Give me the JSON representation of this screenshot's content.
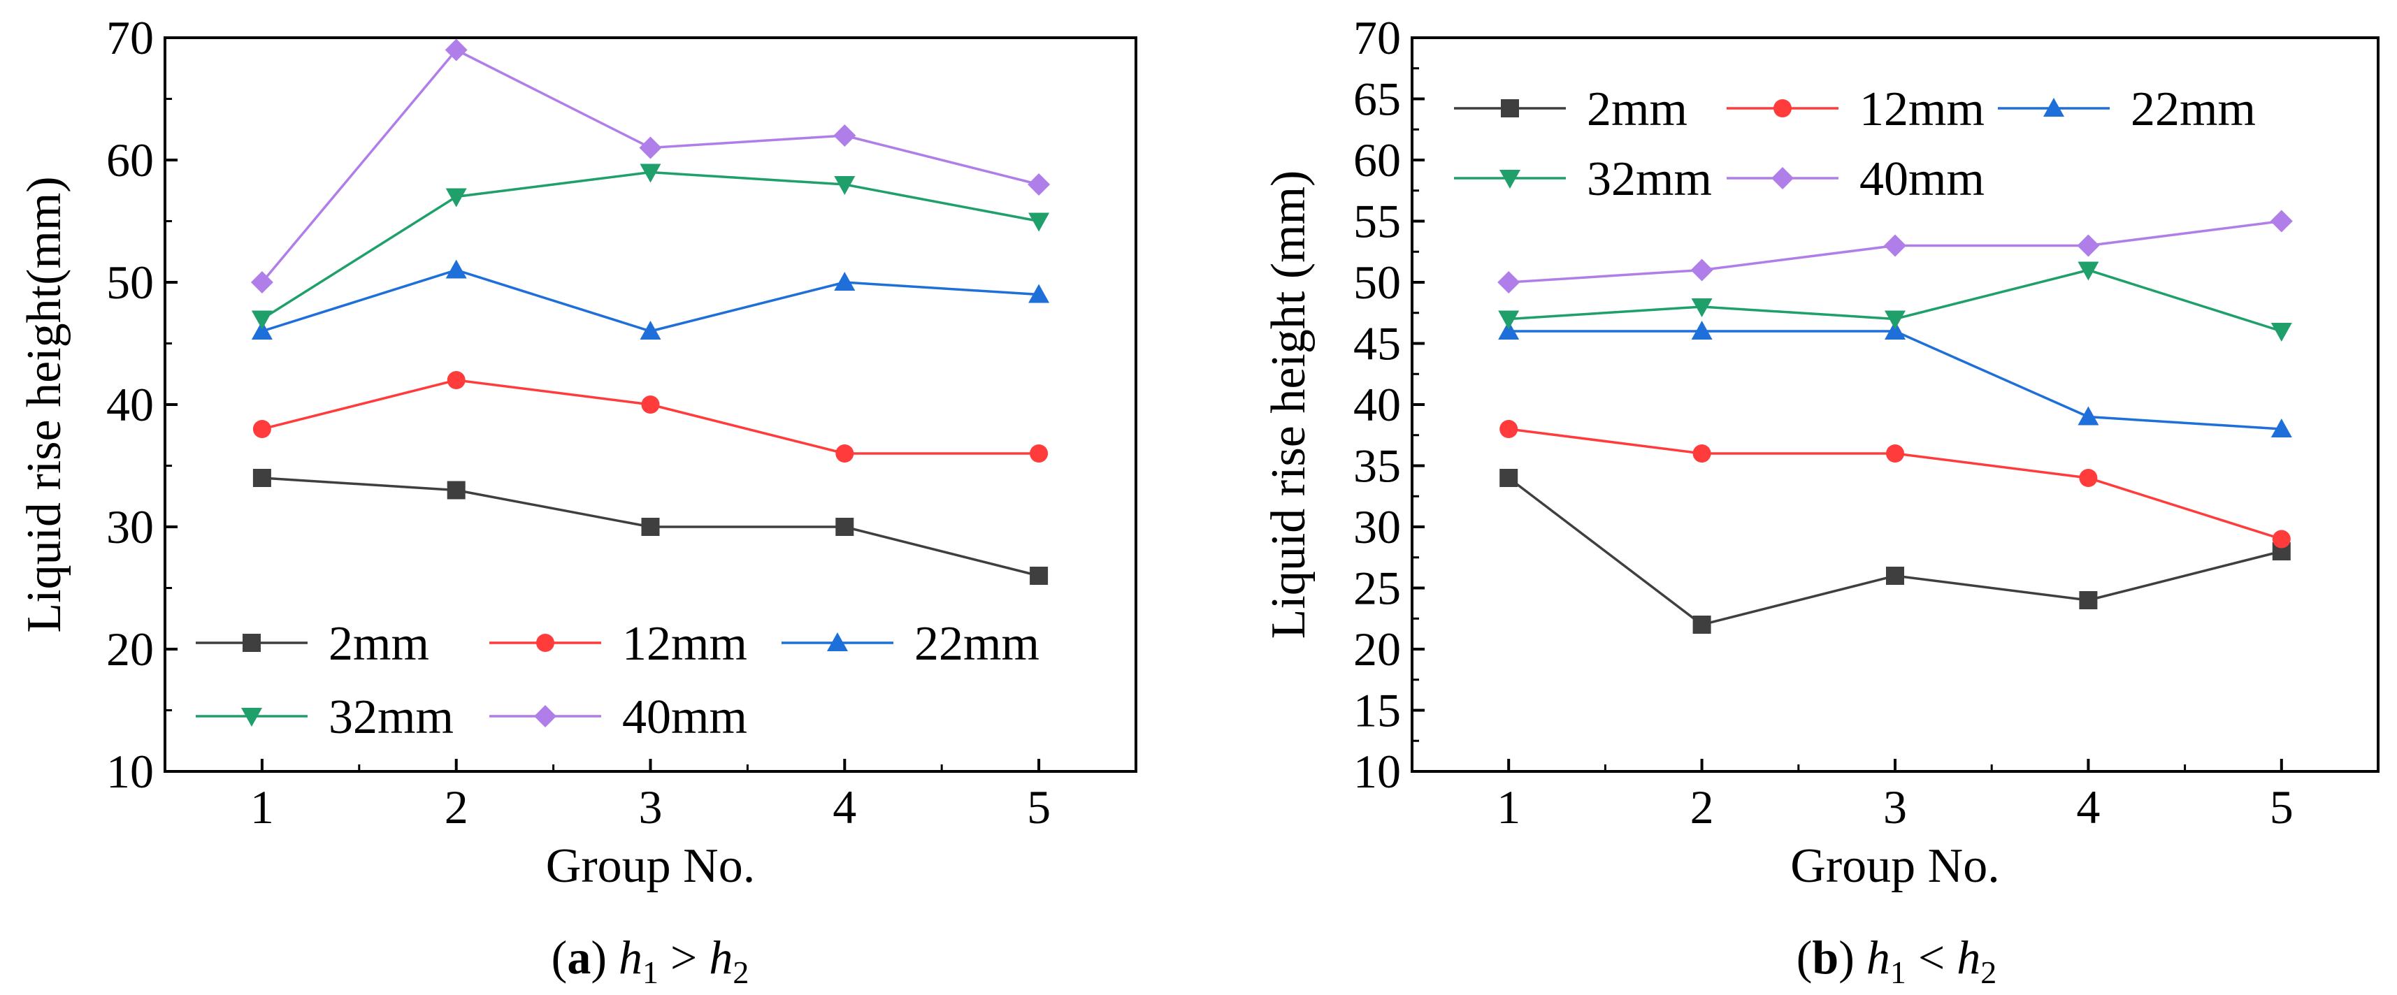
{
  "chart_data": [
    {
      "type": "line",
      "caption": {
        "letter": "a",
        "h1": "h",
        "sub1": "1",
        "op": ">",
        "h2": "h",
        "sub2": "2"
      },
      "xlabel": "Group No.",
      "ylabel": "Liquid rise height(mm)",
      "x": [
        1,
        2,
        3,
        4,
        5
      ],
      "xlim": [
        0.5,
        5.5
      ],
      "ylim": [
        10,
        70
      ],
      "yticks": [
        10,
        20,
        30,
        40,
        50,
        60,
        70
      ],
      "legend_position": "bottom-left",
      "series": [
        {
          "name": "2mm",
          "color": "#3f3f3f",
          "marker": "square",
          "values": [
            34,
            33,
            30,
            30,
            26
          ]
        },
        {
          "name": "12mm",
          "color": "#ff3b3b",
          "marker": "circle",
          "values": [
            38,
            42,
            40,
            36,
            36
          ]
        },
        {
          "name": "22mm",
          "color": "#1e6fd9",
          "marker": "triangle-up",
          "values": [
            46,
            51,
            46,
            50,
            49
          ]
        },
        {
          "name": "32mm",
          "color": "#1fa06a",
          "marker": "triangle-down",
          "values": [
            47,
            57,
            59,
            58,
            55
          ]
        },
        {
          "name": "40mm",
          "color": "#b07ee8",
          "marker": "diamond",
          "values": [
            50,
            69,
            61,
            62,
            58
          ]
        }
      ]
    },
    {
      "type": "line",
      "caption": {
        "letter": "b",
        "h1": "h",
        "sub1": "1",
        "op": "<",
        "h2": "h",
        "sub2": "2"
      },
      "xlabel": "Group No.",
      "ylabel": "Liquid rise height (mm)",
      "x": [
        1,
        2,
        3,
        4,
        5
      ],
      "xlim": [
        0.5,
        5.5
      ],
      "ylim": [
        10,
        70
      ],
      "yticks": [
        10,
        15,
        20,
        25,
        30,
        35,
        40,
        45,
        50,
        55,
        60,
        65,
        70
      ],
      "legend_position": "top-left",
      "series": [
        {
          "name": "2mm",
          "color": "#3f3f3f",
          "marker": "square",
          "values": [
            34,
            22,
            26,
            24,
            28
          ]
        },
        {
          "name": "12mm",
          "color": "#ff3b3b",
          "marker": "circle",
          "values": [
            38,
            36,
            36,
            34,
            29
          ]
        },
        {
          "name": "22mm",
          "color": "#1e6fd9",
          "marker": "triangle-up",
          "values": [
            46,
            46,
            46,
            39,
            38
          ]
        },
        {
          "name": "32mm",
          "color": "#1fa06a",
          "marker": "triangle-down",
          "values": [
            47,
            48,
            47,
            51,
            46
          ]
        },
        {
          "name": "40mm",
          "color": "#b07ee8",
          "marker": "diamond",
          "values": [
            50,
            51,
            53,
            53,
            55
          ]
        }
      ]
    }
  ]
}
